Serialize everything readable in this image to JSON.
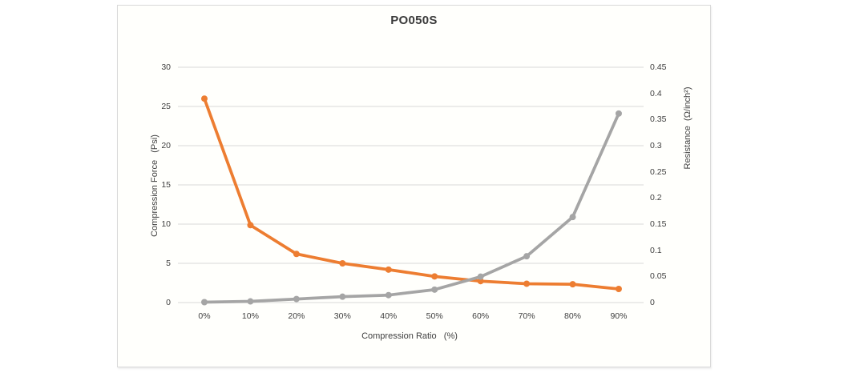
{
  "chart_data": {
    "type": "line",
    "title": "PO050S",
    "legend": "none",
    "grid": "horizontal",
    "x_axis": {
      "title": "Compression Ratio   (%)",
      "categories": [
        "0%",
        "10%",
        "20%",
        "30%",
        "40%",
        "50%",
        "60%",
        "70%",
        "80%",
        "90%"
      ]
    },
    "left_axis": {
      "title": "Compression Force   (Psi)",
      "min": 0,
      "max": 30,
      "ticks": [
        "0",
        "5",
        "10",
        "15",
        "20",
        "25",
        "30"
      ]
    },
    "right_axis": {
      "title": "Resistance  (Ω/inch²)",
      "min": 0,
      "max": 0.45,
      "ticks": [
        "0",
        "0.05",
        "0.1",
        "0.15",
        "0.2",
        "0.25",
        "0.3",
        "0.35",
        "0.4",
        "0.45"
      ]
    },
    "series": [
      {
        "name": "Resistance",
        "axis": "right",
        "color": "#ED7D31",
        "values": [
          0.39,
          0.148,
          0.093,
          0.075,
          0.063,
          0.05,
          0.041,
          0.036,
          0.035,
          0.026
        ]
      },
      {
        "name": "Compression Force",
        "axis": "left",
        "color": "#A5A5A5",
        "values": [
          0.05,
          0.15,
          0.45,
          0.75,
          0.95,
          1.65,
          3.3,
          5.9,
          10.9,
          24.1
        ]
      }
    ],
    "colors": {
      "gridline": "#D9D9D9",
      "text": "#404040",
      "frame_border": "#D9D9D9",
      "plot_background": "#FFFFFC"
    }
  }
}
